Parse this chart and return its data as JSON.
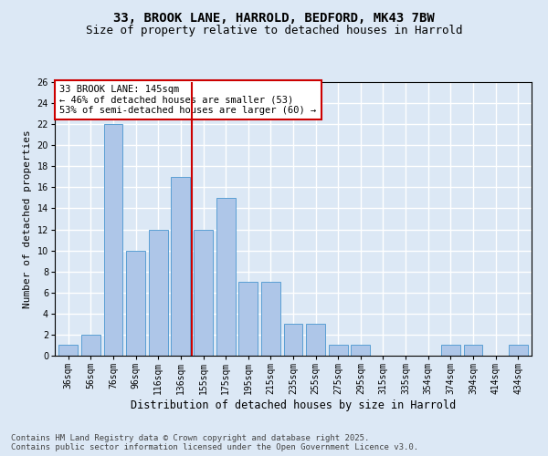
{
  "title1": "33, BROOK LANE, HARROLD, BEDFORD, MK43 7BW",
  "title2": "Size of property relative to detached houses in Harrold",
  "xlabel": "Distribution of detached houses by size in Harrold",
  "ylabel": "Number of detached properties",
  "categories": [
    "36sqm",
    "56sqm",
    "76sqm",
    "96sqm",
    "116sqm",
    "136sqm",
    "155sqm",
    "175sqm",
    "195sqm",
    "215sqm",
    "235sqm",
    "255sqm",
    "275sqm",
    "295sqm",
    "315sqm",
    "335sqm",
    "354sqm",
    "374sqm",
    "394sqm",
    "414sqm",
    "434sqm"
  ],
  "values": [
    1,
    2,
    22,
    10,
    12,
    17,
    12,
    15,
    7,
    7,
    3,
    3,
    1,
    1,
    0,
    0,
    0,
    1,
    1,
    0,
    1
  ],
  "bar_color": "#aec6e8",
  "bar_edgecolor": "#5a9fd4",
  "vline_x": 5.5,
  "vline_color": "#cc0000",
  "annotation_text": "33 BROOK LANE: 145sqm\n← 46% of detached houses are smaller (53)\n53% of semi-detached houses are larger (60) →",
  "annotation_box_color": "#ffffff",
  "annotation_box_edgecolor": "#cc0000",
  "ylim": [
    0,
    26
  ],
  "yticks": [
    0,
    2,
    4,
    6,
    8,
    10,
    12,
    14,
    16,
    18,
    20,
    22,
    24,
    26
  ],
  "background_color": "#dce8f5",
  "grid_color": "#ffffff",
  "footer": "Contains HM Land Registry data © Crown copyright and database right 2025.\nContains public sector information licensed under the Open Government Licence v3.0.",
  "title1_fontsize": 10,
  "title2_fontsize": 9,
  "xlabel_fontsize": 8.5,
  "ylabel_fontsize": 8,
  "tick_fontsize": 7,
  "annotation_fontsize": 7.5,
  "footer_fontsize": 6.5
}
